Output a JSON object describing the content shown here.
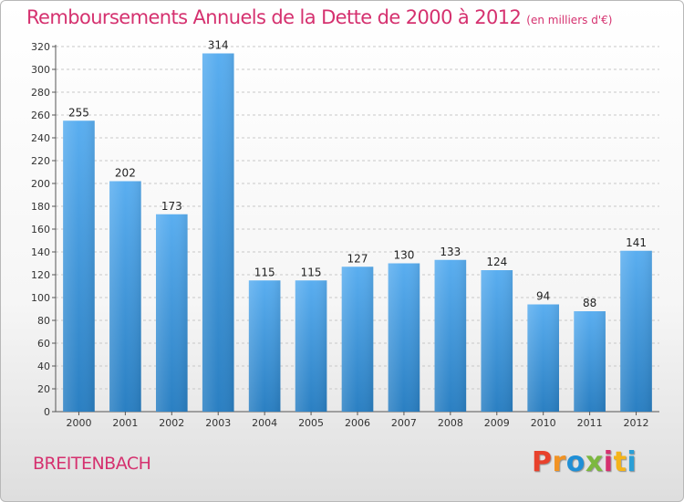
{
  "colors": {
    "title": "#d5316f",
    "commune": "#d5316f",
    "bar_top": "#5aaef0",
    "bar_bottom": "#2a7fc2",
    "grid": "#c8c8c8",
    "brand_letters": [
      "#e8412c",
      "#f19324",
      "#1f8fd6",
      "#7cb83f",
      "#d5316f",
      "#f4b41a",
      "#2a9fd6"
    ]
  },
  "chart_data": {
    "type": "bar",
    "title": "Remboursements Annuels de la Dette de 2000 à 2012",
    "subtitle": "(en milliers d'€)",
    "categories": [
      "2000",
      "2001",
      "2002",
      "2003",
      "2004",
      "2005",
      "2006",
      "2007",
      "2008",
      "2009",
      "2010",
      "2011",
      "2012"
    ],
    "values": [
      255,
      202,
      173,
      314,
      115,
      115,
      127,
      130,
      133,
      124,
      94,
      88,
      141
    ],
    "ylim": [
      0,
      320
    ],
    "yticks": [
      0,
      20,
      40,
      60,
      80,
      100,
      120,
      140,
      160,
      180,
      200,
      220,
      240,
      260,
      280,
      300,
      320
    ],
    "grid": true,
    "xlabel": "",
    "ylabel": ""
  },
  "footer": {
    "commune": "BREITENBACH",
    "brand_letters": [
      "P",
      "r",
      "o",
      "x",
      "i",
      "t",
      "i"
    ]
  }
}
